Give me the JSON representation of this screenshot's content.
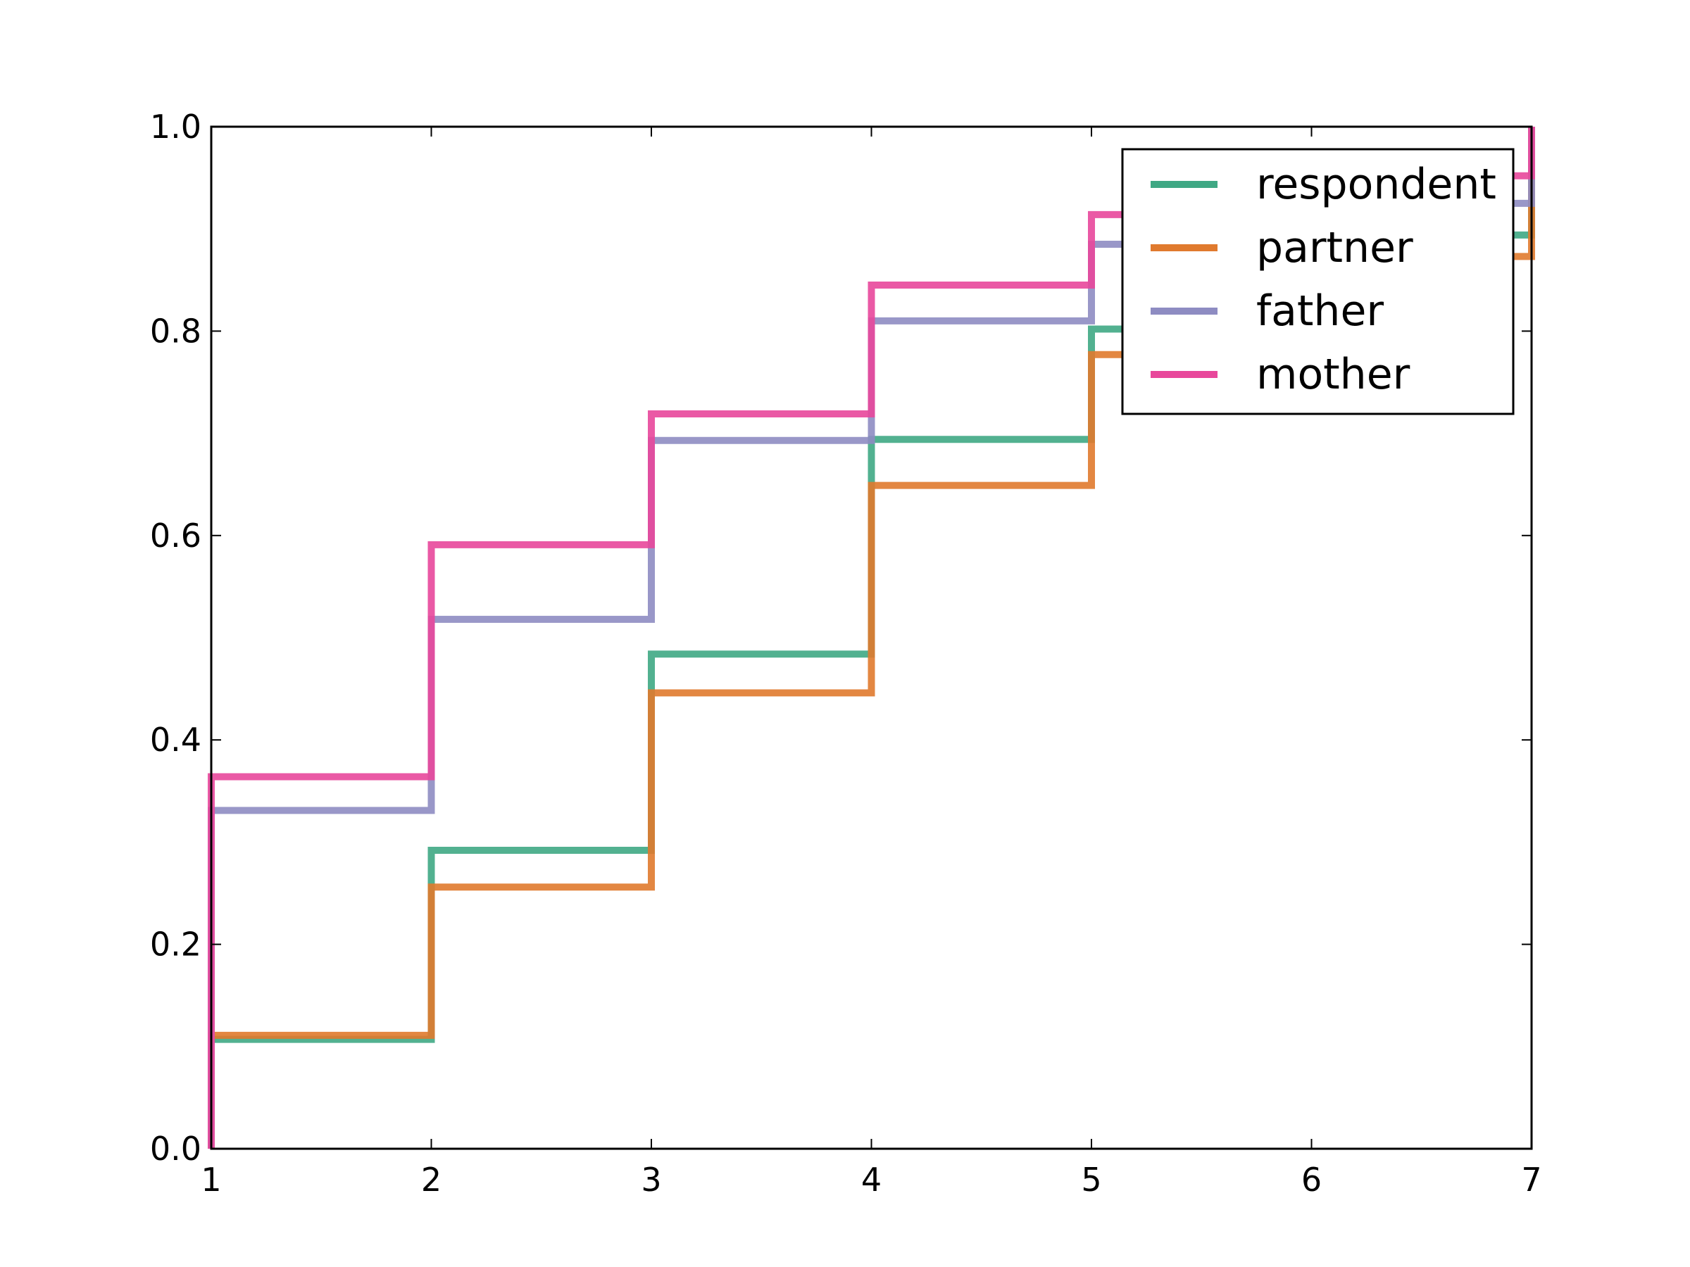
{
  "chart_data": {
    "type": "line",
    "drawstyle": "steps-post",
    "title": "",
    "xlabel": "",
    "ylabel": "",
    "xlim": [
      1,
      7
    ],
    "ylim": [
      0.0,
      1.0
    ],
    "xticks": [
      "1",
      "2",
      "3",
      "4",
      "5",
      "6",
      "7"
    ],
    "yticks": [
      "0.0",
      "0.2",
      "0.4",
      "0.6",
      "0.8",
      "1.0"
    ],
    "grid": false,
    "legend_position": "top-right",
    "x": [
      1,
      2,
      3,
      4,
      5,
      6,
      7
    ],
    "series": [
      {
        "name": "respondent",
        "color": "#3fa884",
        "values": [
          0.107,
          0.292,
          0.484,
          0.694,
          0.802,
          0.894,
          1.0
        ]
      },
      {
        "name": "partner",
        "color": "#e07a2e",
        "values": [
          0.111,
          0.256,
          0.446,
          0.649,
          0.777,
          0.873,
          1.0
        ]
      },
      {
        "name": "father",
        "color": "#8e8cc2",
        "values": [
          0.331,
          0.518,
          0.693,
          0.81,
          0.885,
          0.925,
          1.0
        ]
      },
      {
        "name": "mother",
        "color": "#e8479b",
        "values": [
          0.364,
          0.591,
          0.719,
          0.845,
          0.914,
          0.952,
          1.0
        ]
      }
    ]
  }
}
